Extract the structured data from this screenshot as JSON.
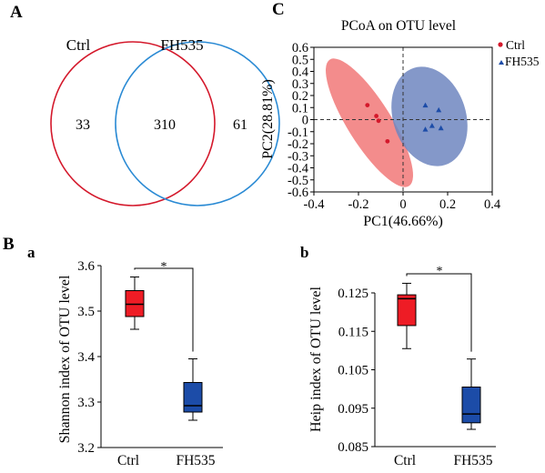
{
  "panels": {
    "A": "A",
    "B": "B",
    "C": "C",
    "a": "a",
    "b": "b"
  },
  "colors": {
    "ctrl": "#d4182b",
    "fh535": "#2a8ad4",
    "ctrl_fill": "#f06f6f",
    "fh535_fill": "#6f86bf",
    "ctrl_box": "#ee1c25",
    "fh535_box": "#1c4ca8"
  },
  "chart_data": [
    {
      "type": "venn",
      "sets": [
        {
          "name": "Ctrl",
          "only": 33
        },
        {
          "name": "FH535",
          "only": 61
        }
      ],
      "intersection": 310
    },
    {
      "type": "scatter",
      "title": "PCoA on OTU level",
      "xlabel": "PC1(46.66%)",
      "ylabel": "PC2(28.81%)",
      "xlim": [
        -0.4,
        0.4
      ],
      "ylim": [
        -0.6,
        0.6
      ],
      "xticks": [
        "-0.4",
        "-0.2",
        "0",
        "0.2",
        "0.4"
      ],
      "yticks": [
        "0.6",
        "0.5",
        "0.4",
        "0.3",
        "0.2",
        "0.1",
        "0",
        "-0.1",
        "-0.2",
        "-0.3",
        "-0.4",
        "-0.5",
        "-0.6"
      ],
      "legend_position": "top-right",
      "series": [
        {
          "name": "Ctrl",
          "marker": "circle",
          "points": [
            [
              -0.16,
              0.12
            ],
            [
              -0.12,
              0.03
            ],
            [
              -0.11,
              -0.01
            ],
            [
              -0.07,
              -0.18
            ]
          ]
        },
        {
          "name": "FH535",
          "marker": "triangle",
          "points": [
            [
              0.1,
              0.12
            ],
            [
              0.16,
              0.08
            ],
            [
              0.13,
              -0.05
            ],
            [
              0.1,
              -0.08
            ],
            [
              0.17,
              -0.07
            ]
          ]
        }
      ]
    },
    {
      "type": "box",
      "ylabel": "Shannon index of OTU level",
      "ylim": [
        3.2,
        3.6
      ],
      "yticks": [
        "3.6",
        "3.5",
        "3.4",
        "3.3",
        "3.2"
      ],
      "categories": [
        "Ctrl",
        "FH535"
      ],
      "significance": "*",
      "boxes": [
        {
          "name": "Ctrl",
          "min": 3.46,
          "q1": 3.488,
          "median": 3.515,
          "q3": 3.545,
          "max": 3.575
        },
        {
          "name": "FH535",
          "min": 3.26,
          "q1": 3.278,
          "median": 3.292,
          "q3": 3.343,
          "max": 3.395
        }
      ]
    },
    {
      "type": "box",
      "ylabel": "Heip index of OTU level",
      "ylim": [
        0.085,
        0.125
      ],
      "yticks": [
        "0.125",
        "0.115",
        "0.105",
        "0.095",
        "0.085"
      ],
      "categories": [
        "Ctrl",
        "FH535"
      ],
      "significance": "*",
      "boxes": [
        {
          "name": "Ctrl",
          "min": 0.1105,
          "q1": 0.1165,
          "median": 0.1235,
          "q3": 0.1245,
          "max": 0.1275
        },
        {
          "name": "FH535",
          "min": 0.0895,
          "q1": 0.0912,
          "median": 0.0935,
          "q3": 0.1005,
          "max": 0.1078
        }
      ]
    }
  ]
}
